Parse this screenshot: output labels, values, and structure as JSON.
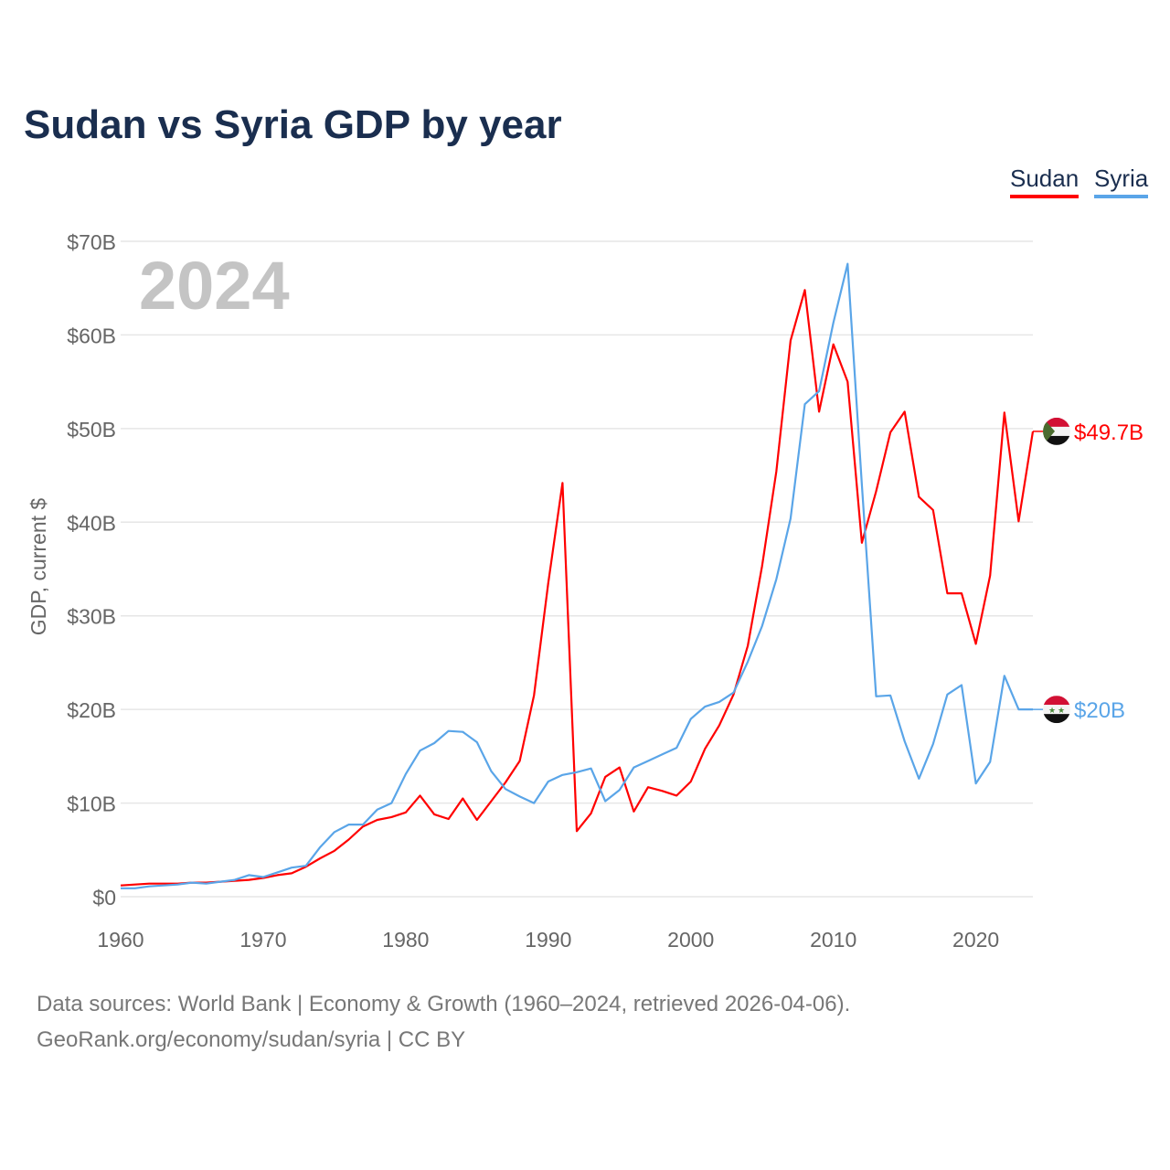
{
  "chart_data": {
    "type": "line",
    "title": "Sudan vs Syria GDP by year",
    "ylabel": "GDP, current $",
    "xlabel": "",
    "year_label": "2024",
    "ylim": [
      0,
      70
    ],
    "xlim": [
      1960,
      2024
    ],
    "yticks": [
      0,
      10,
      20,
      30,
      40,
      50,
      60,
      70
    ],
    "ytick_labels": [
      "$0",
      "$10B",
      "$20B",
      "$30B",
      "$40B",
      "$50B",
      "$60B",
      "$70B"
    ],
    "xticks": [
      1960,
      1970,
      1980,
      1990,
      2000,
      2010,
      2020
    ],
    "xtick_labels": [
      "1960",
      "1970",
      "1980",
      "1990",
      "2000",
      "2010",
      "2020"
    ],
    "grid": true,
    "legend_position": "top-right",
    "x_start": 1960,
    "series": [
      {
        "name": "Sudan",
        "color": "#ff0000",
        "end_label": "$49.7B",
        "flag": "sudan-flag",
        "values": [
          1.2,
          1.3,
          1.4,
          1.4,
          1.4,
          1.5,
          1.5,
          1.6,
          1.7,
          1.8,
          2.0,
          2.3,
          2.5,
          3.2,
          4.1,
          4.9,
          6.1,
          7.5,
          8.2,
          8.5,
          9.0,
          10.8,
          8.8,
          8.3,
          10.5,
          8.2,
          10.2,
          12.2,
          14.5,
          21.5,
          33.5,
          44.2,
          7.0,
          8.9,
          12.8,
          13.8,
          9.1,
          11.7,
          11.3,
          10.8,
          12.3,
          15.8,
          18.3,
          21.6,
          26.8,
          35.3,
          45.4,
          59.4,
          64.8,
          51.8,
          59.0,
          55.0,
          37.8,
          43.3,
          49.6,
          51.8,
          42.7,
          41.3,
          32.4,
          32.4,
          27.0,
          34.3,
          51.7,
          40.1,
          49.7
        ]
      },
      {
        "name": "Syria",
        "color": "#5aa5e8",
        "end_label": "$20B",
        "flag": "syria-flag",
        "values": [
          0.9,
          0.9,
          1.1,
          1.2,
          1.3,
          1.5,
          1.4,
          1.6,
          1.8,
          2.3,
          2.1,
          2.6,
          3.1,
          3.3,
          5.3,
          6.9,
          7.7,
          7.7,
          9.3,
          10.0,
          13.1,
          15.6,
          16.4,
          17.7,
          17.6,
          16.5,
          13.4,
          11.5,
          10.7,
          10.0,
          12.3,
          13.0,
          13.3,
          13.7,
          10.2,
          11.4,
          13.8,
          14.5,
          15.2,
          15.9,
          19.0,
          20.3,
          20.8,
          21.8,
          25.1,
          28.9,
          33.9,
          40.4,
          52.6,
          54.0,
          61.3,
          67.6,
          44.0,
          21.4,
          21.5,
          16.6,
          12.6,
          16.3,
          21.6,
          22.6,
          12.1,
          14.4,
          23.6,
          20.0,
          20.0
        ]
      }
    ]
  },
  "footer": {
    "line1": "Data sources: World Bank | Economy & Growth (1960–2024, retrieved 2026-04-06).",
    "line2": "GeoRank.org/economy/sudan/syria | CC BY"
  }
}
